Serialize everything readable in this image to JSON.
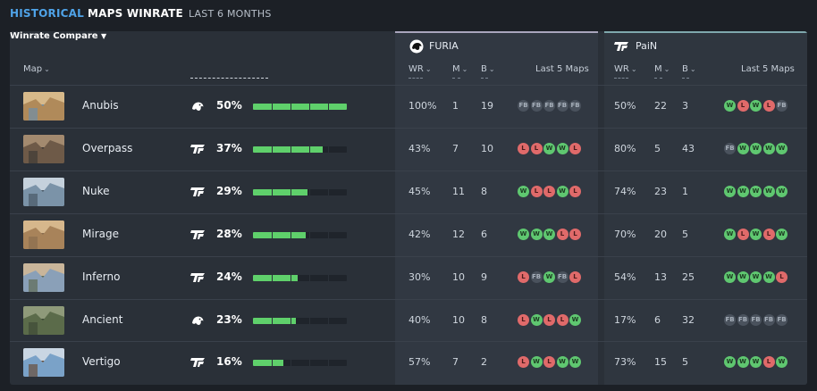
{
  "header": {
    "accent": "HISTORICAL",
    "title": "MAPS WINRATE",
    "subtitle": "LAST 6 MONTHS"
  },
  "columns": {
    "map": "Map",
    "compare": "Winrate Compare",
    "wr": "WR",
    "m": "M",
    "b": "B",
    "last5": "Last 5 Maps"
  },
  "teams": {
    "furia": {
      "name": "FURIA",
      "icon": "furia-panther-icon"
    },
    "pain": {
      "name": "PaiN",
      "icon": "pain-logo-icon"
    }
  },
  "colors": {
    "accent": "#4fa3e8",
    "bar": "#5fd06b",
    "win": "#5fc770",
    "loss": "#e06a6a",
    "fb": "#4a525d"
  },
  "rows": [
    {
      "map": "Anubis",
      "compare_team": "furia",
      "compare_pct": "50%",
      "compare_value": 0.5,
      "furia": {
        "wr": "100%",
        "m": "1",
        "b": "19",
        "last5": [
          "FB",
          "FB",
          "FB",
          "FB",
          "FB"
        ]
      },
      "pain": {
        "wr": "50%",
        "m": "22",
        "b": "3",
        "last5": [
          "W",
          "L",
          "W",
          "L",
          "FB"
        ]
      }
    },
    {
      "map": "Overpass",
      "compare_team": "pain",
      "compare_pct": "37%",
      "compare_value": 0.37,
      "furia": {
        "wr": "43%",
        "m": "7",
        "b": "10",
        "last5": [
          "L",
          "L",
          "W",
          "W",
          "L"
        ]
      },
      "pain": {
        "wr": "80%",
        "m": "5",
        "b": "43",
        "last5": [
          "FB",
          "W",
          "W",
          "W",
          "W"
        ]
      }
    },
    {
      "map": "Nuke",
      "compare_team": "pain",
      "compare_pct": "29%",
      "compare_value": 0.29,
      "furia": {
        "wr": "45%",
        "m": "11",
        "b": "8",
        "last5": [
          "W",
          "L",
          "L",
          "W",
          "L"
        ]
      },
      "pain": {
        "wr": "74%",
        "m": "23",
        "b": "1",
        "last5": [
          "W",
          "W",
          "W",
          "W",
          "W"
        ]
      }
    },
    {
      "map": "Mirage",
      "compare_team": "pain",
      "compare_pct": "28%",
      "compare_value": 0.28,
      "furia": {
        "wr": "42%",
        "m": "12",
        "b": "6",
        "last5": [
          "W",
          "W",
          "W",
          "L",
          "L"
        ]
      },
      "pain": {
        "wr": "70%",
        "m": "20",
        "b": "5",
        "last5": [
          "W",
          "L",
          "W",
          "L",
          "W"
        ]
      }
    },
    {
      "map": "Inferno",
      "compare_team": "pain",
      "compare_pct": "24%",
      "compare_value": 0.24,
      "furia": {
        "wr": "30%",
        "m": "10",
        "b": "9",
        "last5": [
          "L",
          "FB",
          "W",
          "FB",
          "L"
        ]
      },
      "pain": {
        "wr": "54%",
        "m": "13",
        "b": "25",
        "last5": [
          "W",
          "W",
          "W",
          "W",
          "L"
        ]
      }
    },
    {
      "map": "Ancient",
      "compare_team": "furia",
      "compare_pct": "23%",
      "compare_value": 0.23,
      "furia": {
        "wr": "40%",
        "m": "10",
        "b": "8",
        "last5": [
          "L",
          "W",
          "L",
          "L",
          "W"
        ]
      },
      "pain": {
        "wr": "17%",
        "m": "6",
        "b": "32",
        "last5": [
          "FB",
          "FB",
          "FB",
          "FB",
          "FB"
        ]
      }
    },
    {
      "map": "Vertigo",
      "compare_team": "pain",
      "compare_pct": "16%",
      "compare_value": 0.16,
      "furia": {
        "wr": "57%",
        "m": "7",
        "b": "2",
        "last5": [
          "L",
          "W",
          "L",
          "W",
          "W"
        ]
      },
      "pain": {
        "wr": "73%",
        "m": "15",
        "b": "5",
        "last5": [
          "W",
          "W",
          "W",
          "L",
          "W"
        ]
      }
    }
  ]
}
